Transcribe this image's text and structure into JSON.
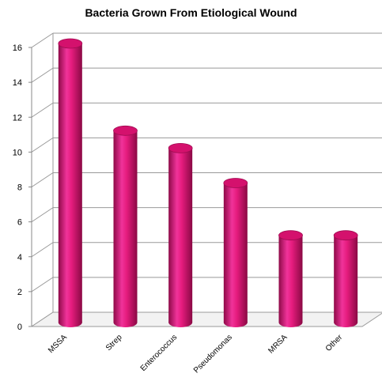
{
  "chart_data": {
    "type": "bar",
    "title": "Bacteria Grown From Etiological Wound",
    "categories": [
      "MSSA",
      "Strep",
      "Enterococcus",
      "Pseudomonas",
      "MRSA",
      "Other"
    ],
    "values": [
      16,
      11,
      10,
      8,
      5,
      5
    ],
    "ylim": [
      0,
      16
    ],
    "yticks": [
      "0",
      "2",
      "4",
      "6",
      "8",
      "10",
      "12",
      "14",
      "16"
    ],
    "grid": true,
    "legend": "none",
    "bar_color": "#e6197a",
    "xlabel": "",
    "ylabel": ""
  }
}
